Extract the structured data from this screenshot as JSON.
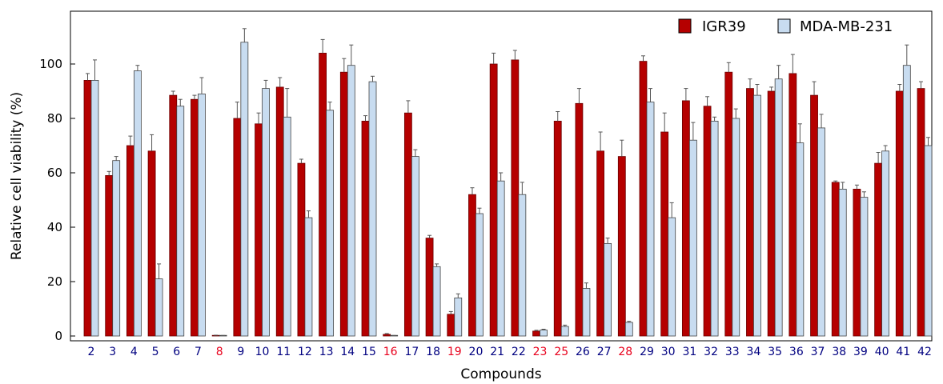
{
  "chart_data": {
    "type": "bar",
    "title": "",
    "xlabel": "Compounds",
    "ylabel": "Relative cell viability (%)",
    "ylim": [
      0,
      116
    ],
    "yticks": [
      0,
      20,
      40,
      60,
      80,
      100
    ],
    "yticks_text": [
      "0",
      "20",
      "40",
      "60",
      "80",
      "100"
    ],
    "grid": false,
    "legend_position": "top-right",
    "categories": [
      "2",
      "3",
      "4",
      "5",
      "6",
      "7",
      "8",
      "9",
      "10",
      "11",
      "12",
      "13",
      "14",
      "15",
      "16",
      "17",
      "18",
      "19",
      "20",
      "21",
      "22",
      "23",
      "25",
      "26",
      "27",
      "28",
      "29",
      "30",
      "31",
      "32",
      "33",
      "34",
      "35",
      "36",
      "37",
      "38",
      "39",
      "40",
      "41",
      "42"
    ],
    "highlighted_categories": [
      "8",
      "16",
      "19",
      "23",
      "25",
      "28"
    ],
    "series": [
      {
        "name": "IGR39",
        "color": "#b50000",
        "values": [
          94,
          59,
          70,
          68,
          88.5,
          87,
          0.2,
          80,
          78,
          91.5,
          63.5,
          104,
          97,
          79,
          0.6,
          82,
          36,
          8,
          52,
          100,
          101.5,
          1.8,
          79,
          85.5,
          68,
          66,
          101,
          75,
          86.5,
          84.5,
          97,
          91,
          90,
          96.5,
          88.5,
          56.5,
          54,
          63.5,
          90,
          91
        ],
        "errors": [
          2.5,
          1.5,
          3.5,
          6,
          1.5,
          1.5,
          0.1,
          6,
          4,
          3.5,
          1.5,
          5,
          5,
          2,
          0.3,
          4.5,
          1,
          1,
          2.5,
          4,
          3.5,
          0.3,
          3.5,
          5.5,
          7,
          6,
          2,
          7,
          4.5,
          3.5,
          3.5,
          3.5,
          1.5,
          7,
          5,
          0.5,
          1.5,
          4,
          2.5,
          2.5
        ]
      },
      {
        "name": "MDA-MB-231",
        "color": "#c8dcf0",
        "values": [
          94,
          64.5,
          97.5,
          21,
          84.5,
          89,
          0.1,
          108,
          91,
          80.5,
          43.5,
          83,
          99.5,
          93.5,
          0.1,
          66,
          25.5,
          14,
          45,
          57,
          52,
          2.2,
          3.5,
          17.5,
          34,
          5,
          86,
          43.5,
          72,
          79,
          80,
          88.5,
          94.5,
          71,
          76.5,
          54,
          51,
          68,
          99.5,
          70
        ],
        "errors": [
          7.5,
          1.5,
          2,
          5.5,
          2.5,
          6,
          0.1,
          5,
          3,
          10.5,
          2.5,
          3,
          7.5,
          2,
          0.1,
          2.5,
          1,
          1.5,
          2,
          3,
          4.5,
          0.3,
          0.5,
          2,
          2,
          0.4,
          5,
          5.5,
          6.5,
          1.5,
          3.5,
          4,
          5,
          7,
          5,
          2.5,
          2,
          2,
          7.5,
          3
        ]
      }
    ]
  }
}
